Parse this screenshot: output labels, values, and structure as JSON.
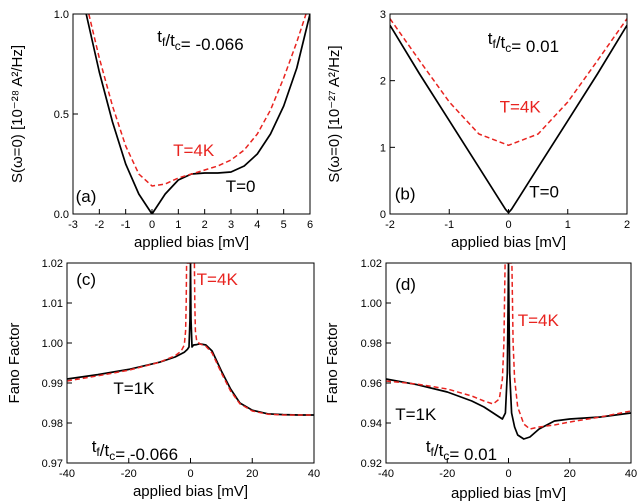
{
  "colors": {
    "black": "#000000",
    "red": "#e8231f"
  },
  "chart_data": [
    {
      "id": "a",
      "type": "line",
      "xlabel": "applied bias [mV]",
      "ylabel": "S(ω=0) [10⁻²⁸ A²/Hz]",
      "xlim": [
        -3,
        6
      ],
      "ylim": [
        0,
        1
      ],
      "xticks": [
        "-3",
        "-2",
        "-1",
        "0",
        "1",
        "2",
        "3",
        "4",
        "5",
        "6"
      ],
      "yticks": [
        "0.0",
        "0.5",
        "1.0"
      ],
      "xtick_values": [
        -3,
        -2,
        -1,
        0,
        1,
        2,
        3,
        4,
        5,
        6
      ],
      "ytick_values": [
        0,
        0.5,
        1.0
      ],
      "series": [
        {
          "name": "T=0",
          "color": "#000000",
          "dash": false,
          "x": [
            -2.5,
            -2,
            -1.5,
            -1,
            -0.5,
            -0.2,
            0,
            0.2,
            0.5,
            1,
            1.5,
            2,
            2.5,
            3,
            3.5,
            4,
            4.5,
            5,
            5.5,
            6
          ],
          "y": [
            1.0,
            0.71,
            0.46,
            0.25,
            0.1,
            0.04,
            0.0,
            0.04,
            0.1,
            0.17,
            0.2,
            0.205,
            0.205,
            0.21,
            0.24,
            0.3,
            0.4,
            0.54,
            0.73,
            1.0
          ]
        },
        {
          "name": "T=4K",
          "color": "#e8231f",
          "dash": true,
          "x": [
            -2.4,
            -2,
            -1.5,
            -1,
            -0.5,
            0,
            0.5,
            1,
            1.5,
            2,
            2.5,
            3,
            3.5,
            4,
            4.5,
            5,
            5.5,
            5.85
          ],
          "y": [
            1.0,
            0.78,
            0.54,
            0.34,
            0.2,
            0.14,
            0.15,
            0.18,
            0.2,
            0.22,
            0.24,
            0.27,
            0.32,
            0.4,
            0.52,
            0.68,
            0.86,
            1.0
          ]
        }
      ],
      "annotations": [
        {
          "text": "t_f/t_c= -0.066",
          "x": 0.2,
          "y": 0.86,
          "color": "#000000"
        },
        {
          "text": "T=4K",
          "x": 0.8,
          "y": 0.29,
          "color": "#e8231f"
        },
        {
          "text": "T=0",
          "x": 2.8,
          "y": 0.11,
          "color": "#000000"
        },
        {
          "text": "(a)",
          "x": -2.9,
          "y": 0.06,
          "color": "#000000"
        }
      ]
    },
    {
      "id": "b",
      "type": "line",
      "xlabel": "applied bias [mV]",
      "ylabel": "S(ω=0) [10⁻²⁷ A²/Hz]",
      "xlim": [
        -2,
        2
      ],
      "ylim": [
        0,
        3
      ],
      "xticks": [
        "-2",
        "-1",
        "0",
        "1",
        "2"
      ],
      "yticks": [
        "0",
        "1",
        "2",
        "3"
      ],
      "xtick_values": [
        -2,
        -1,
        0,
        1,
        2
      ],
      "ytick_values": [
        0,
        1,
        2,
        3
      ],
      "series": [
        {
          "name": "T=0",
          "color": "#000000",
          "dash": false,
          "x": [
            -2,
            -1.5,
            -1,
            -0.5,
            -0.2,
            -0.05,
            0,
            0.05,
            0.2,
            0.5,
            1,
            1.5,
            2
          ],
          "y": [
            2.83,
            2.1,
            1.4,
            0.7,
            0.28,
            0.07,
            0.02,
            0.07,
            0.28,
            0.7,
            1.4,
            2.1,
            2.83
          ]
        },
        {
          "name": "T=4K",
          "color": "#e8231f",
          "dash": true,
          "x": [
            -2,
            -1.5,
            -1,
            -0.5,
            0,
            0.5,
            1,
            1.5,
            2
          ],
          "y": [
            2.93,
            2.3,
            1.68,
            1.2,
            1.03,
            1.2,
            1.68,
            2.3,
            2.93
          ]
        }
      ],
      "annotations": [
        {
          "text": "t_f/t_c= 0.01",
          "x": -0.35,
          "y": 2.55,
          "color": "#000000"
        },
        {
          "text": "T=4K",
          "x": -0.15,
          "y": 1.52,
          "color": "#e8231f"
        },
        {
          "text": "T=0",
          "x": 0.35,
          "y": 0.25,
          "color": "#000000"
        },
        {
          "text": "(b)",
          "x": -1.92,
          "y": 0.22,
          "color": "#000000"
        }
      ]
    },
    {
      "id": "c",
      "type": "line",
      "xlabel": "applied bias [mV]",
      "ylabel": "Fano Factor",
      "xlim": [
        -40,
        40
      ],
      "ylim": [
        0.97,
        1.02
      ],
      "xticks": [
        "-40",
        "-20",
        "0",
        "20",
        "40"
      ],
      "yticks": [
        "0.97",
        "0.98",
        "0.99",
        "1.00",
        "1.01",
        "1.02"
      ],
      "xtick_values": [
        -40,
        -20,
        0,
        20,
        40
      ],
      "ytick_values": [
        0.97,
        0.98,
        0.99,
        1.0,
        1.01,
        1.02
      ],
      "series": [
        {
          "name": "T=1K",
          "color": "#000000",
          "dash": false,
          "x": [
            -40,
            -30,
            -20,
            -10,
            -5,
            -2,
            -1,
            -0.5,
            -0.15,
            0,
            0.15,
            0.5,
            1,
            2,
            3,
            5,
            7,
            10,
            13,
            16,
            20,
            25,
            30,
            35,
            40
          ],
          "y": [
            0.991,
            0.9921,
            0.9934,
            0.9952,
            0.9965,
            0.9977,
            0.9984,
            0.999,
            1.006,
            1.02,
            1.006,
            0.999,
            0.9995,
            0.9996,
            0.9998,
            0.9995,
            0.998,
            0.993,
            0.9885,
            0.985,
            0.9832,
            0.9823,
            0.9821,
            0.982,
            0.982
          ]
        },
        {
          "name": "T=4K",
          "color": "#e8231f",
          "dash": true,
          "x": [
            -40,
            -30,
            -20,
            -10,
            -5,
            -3,
            -2,
            -1.6,
            -1.4,
            -1.25,
            1.25,
            1.4,
            1.6,
            2,
            3,
            5,
            7,
            10,
            13,
            16,
            20,
            25,
            30,
            35,
            40
          ],
          "y": [
            0.9905,
            0.9918,
            0.9932,
            0.9952,
            0.9968,
            0.998,
            0.9995,
            1.003,
            1.01,
            1.02,
            1.02,
            1.01,
            1.003,
            1.0005,
            0.9998,
            0.9992,
            0.9975,
            0.9925,
            0.988,
            0.9848,
            0.983,
            0.9822,
            0.982,
            0.982,
            0.982
          ]
        }
      ],
      "annotations": [
        {
          "text": "(c)",
          "x": -37,
          "y": 1.0145,
          "color": "#000000"
        },
        {
          "text": "T=4K",
          "x": 2,
          "y": 1.0145,
          "color": "#e8231f"
        },
        {
          "text": "T=1K",
          "x": -25,
          "y": 0.9873,
          "color": "#000000"
        },
        {
          "text": "t_f/t_c= -0.066",
          "x": -32,
          "y": 0.9727,
          "color": "#000000"
        }
      ]
    },
    {
      "id": "d",
      "type": "line",
      "xlabel": "applied bias [mV]",
      "ylabel": "Fano Factor",
      "xlim": [
        -40,
        40
      ],
      "ylim": [
        0.92,
        1.02
      ],
      "xticks": [
        "-40",
        "-20",
        "0",
        "20",
        "40"
      ],
      "yticks": [
        "0.92",
        "0.94",
        "0.96",
        "0.98",
        "1.00",
        "1.02"
      ],
      "xtick_values": [
        -40,
        -20,
        0,
        20,
        40
      ],
      "ytick_values": [
        0.92,
        0.94,
        0.96,
        0.98,
        1.0,
        1.02
      ],
      "series": [
        {
          "name": "T=1K",
          "color": "#000000",
          "dash": false,
          "x": [
            -40,
            -30,
            -20,
            -12,
            -8,
            -5,
            -3,
            -2,
            -1,
            -0.4,
            -0.15,
            0,
            0.15,
            0.4,
            1,
            2,
            3,
            5,
            7,
            10,
            15,
            20,
            30,
            40
          ],
          "y": [
            0.962,
            0.9592,
            0.9555,
            0.951,
            0.948,
            0.945,
            0.943,
            0.942,
            0.945,
            0.965,
            0.995,
            1.02,
            0.995,
            0.965,
            0.945,
            0.938,
            0.934,
            0.932,
            0.933,
            0.937,
            0.941,
            0.942,
            0.943,
            0.945
          ]
        },
        {
          "name": "T=4K",
          "color": "#e8231f",
          "dash": true,
          "x": [
            -40,
            -30,
            -20,
            -12,
            -8,
            -5,
            -3,
            -2,
            -1.5,
            -1.1,
            -0.9,
            0.9,
            1.1,
            1.5,
            2,
            3,
            5,
            7,
            10,
            15,
            20,
            30,
            40
          ],
          "y": [
            0.961,
            0.9595,
            0.957,
            0.9535,
            0.951,
            0.9495,
            0.952,
            0.962,
            0.98,
            1.02,
            1.02,
            1.02,
            1.02,
            0.98,
            0.962,
            0.948,
            0.9395,
            0.937,
            0.938,
            0.939,
            0.9405,
            0.943,
            0.946
          ]
        }
      ],
      "annotations": [
        {
          "text": "(d)",
          "x": -37,
          "y": 1.0065,
          "color": "#000000"
        },
        {
          "text": "T=4K",
          "x": 3,
          "y": 0.9885,
          "color": "#e8231f"
        },
        {
          "text": "T=1K",
          "x": -37,
          "y": 0.9415,
          "color": "#000000"
        },
        {
          "text": "t_f/t_c= 0.01",
          "x": -27,
          "y": 0.9255,
          "color": "#000000"
        }
      ]
    }
  ]
}
